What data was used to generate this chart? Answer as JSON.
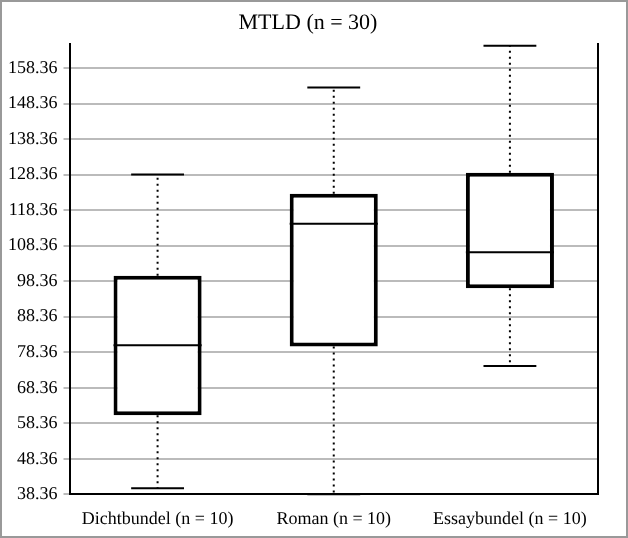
{
  "chart_data": {
    "type": "box",
    "title": "MTLD (n = 30)",
    "categories": [
      "Dichtbundel (n = 10)",
      "Roman (n = 10)",
      "Essaybundel (n = 10)"
    ],
    "boxes": [
      {
        "low": 40.1,
        "q1": 60.6,
        "median": 80.3,
        "q3": 99.9,
        "high": 128.4
      },
      {
        "low": 38.4,
        "q1": 80.0,
        "median": 114.5,
        "q3": 123.0,
        "high": 152.9
      },
      {
        "low": 74.5,
        "q1": 96.4,
        "median": 106.5,
        "q3": 128.9,
        "high": 164.6
      }
    ],
    "color": "#000000",
    "ylim": [
      38.36,
      165
    ],
    "yticks": [
      38.36,
      48.36,
      58.36,
      68.36,
      78.36,
      88.36,
      98.36,
      108.36,
      118.36,
      128.36,
      138.36,
      148.36,
      158.36
    ],
    "grid": "y",
    "legend": false
  }
}
